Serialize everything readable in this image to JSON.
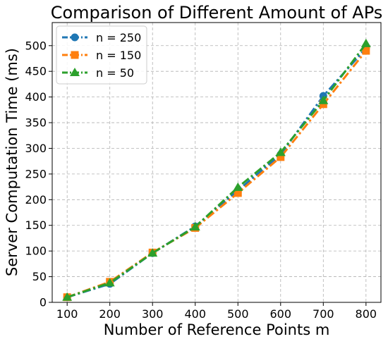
{
  "chart_data": {
    "type": "line",
    "title": "Comparison of Different Amount of APs",
    "xlabel": "Number of Reference Points m",
    "ylabel": "Server Computation Time (ms)",
    "x": [
      100,
      200,
      300,
      400,
      500,
      600,
      700,
      800
    ],
    "xlim": [
      65,
      835
    ],
    "ylim": [
      0,
      545
    ],
    "xticks": [
      100,
      200,
      300,
      400,
      500,
      600,
      700,
      800
    ],
    "yticks": [
      0,
      50,
      100,
      150,
      200,
      250,
      300,
      350,
      400,
      450,
      500
    ],
    "grid": true,
    "legend_position": "top-left",
    "series": [
      {
        "name": "n = 250",
        "color": "#1f77b4",
        "marker": "circle",
        "values": [
          10,
          36,
          96,
          148,
          218,
          288,
          402,
          495
        ]
      },
      {
        "name": "n = 150",
        "color": "#ff7f0e",
        "marker": "square",
        "values": [
          10,
          40,
          97,
          145,
          213,
          283,
          386,
          490
        ]
      },
      {
        "name": "n = 50",
        "color": "#2ca02c",
        "marker": "triangle",
        "values": [
          10,
          38,
          96,
          147,
          224,
          292,
          393,
          504
        ]
      }
    ]
  }
}
